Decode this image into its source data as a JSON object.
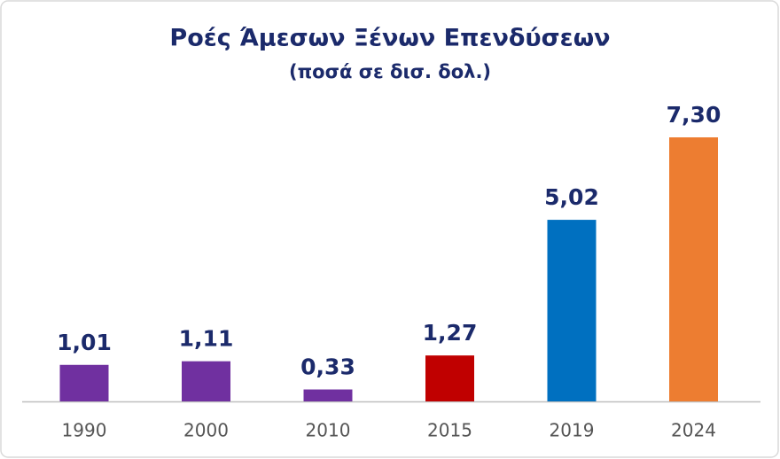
{
  "chart_data": {
    "type": "bar",
    "title": "Ροές Άμεσων Ξένων Επενδύσεων",
    "subtitle": "(ποσά σε δισ. δολ.)",
    "categories": [
      "1990",
      "2000",
      "2010",
      "2015",
      "2019",
      "2024"
    ],
    "values": [
      1.01,
      1.11,
      0.33,
      1.27,
      5.02,
      7.3
    ],
    "value_labels": [
      "1,01",
      "1,11",
      "0,33",
      "1,27",
      "5,02",
      "7,30"
    ],
    "colors": [
      "#7030a0",
      "#7030a0",
      "#7030a0",
      "#c00000",
      "#0070c0",
      "#ed7d31"
    ]
  }
}
